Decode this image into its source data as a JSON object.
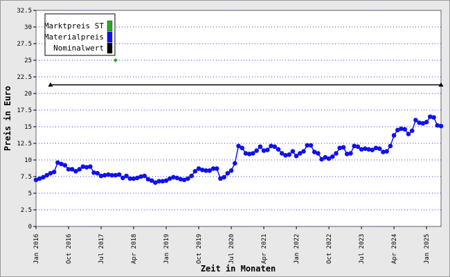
{
  "chart_data": {
    "type": "line",
    "ylabel": "Preis in Euro",
    "xlabel": "Zeit in Monaten",
    "ylim": [
      0,
      32.5
    ],
    "yticks": [
      0,
      2.5,
      5,
      7.5,
      10,
      12.5,
      15,
      17.5,
      20,
      22.5,
      25,
      27.5,
      30,
      32.5
    ],
    "grid": true,
    "legend": "top-left",
    "categories": [
      "Jan 2016",
      null,
      null,
      null,
      null,
      null,
      null,
      null,
      null,
      "Oct 2016",
      null,
      null,
      null,
      null,
      null,
      null,
      null,
      null,
      "Jul 2017",
      null,
      null,
      null,
      null,
      null,
      null,
      null,
      null,
      "Apr 2018",
      null,
      null,
      null,
      null,
      null,
      null,
      null,
      null,
      "Jan 2019",
      null,
      null,
      null,
      null,
      null,
      null,
      null,
      null,
      "Oct 2019",
      null,
      null,
      null,
      null,
      null,
      null,
      null,
      null,
      "Jul 2020",
      null,
      null,
      null,
      null,
      null,
      null,
      null,
      null,
      "Apr 2021",
      null,
      null,
      null,
      null,
      null,
      null,
      null,
      null,
      "Jan 2022",
      null,
      null,
      null,
      null,
      null,
      null,
      null,
      null,
      "Oct 2022",
      null,
      null,
      null,
      null,
      null,
      null,
      null,
      null,
      "Jul 2023",
      null,
      null,
      null,
      null,
      null,
      null,
      null,
      null,
      "Apr 2024",
      null,
      null,
      null,
      null,
      null,
      null,
      null,
      null,
      "Jan 2025",
      null,
      null,
      null,
      null
    ],
    "series": [
      {
        "name": "Marktpreis ST",
        "color": "#22aa22",
        "marker": "diamond",
        "markers": "all",
        "values": [
          null,
          null,
          null,
          null,
          null,
          null,
          null,
          null,
          null,
          null,
          null,
          null,
          null,
          null,
          null,
          null,
          null,
          null,
          null,
          null,
          null,
          null,
          25,
          null,
          null,
          null,
          null,
          null,
          null,
          null,
          null,
          null,
          null,
          null,
          null,
          null,
          null,
          null,
          null,
          null,
          null,
          null,
          null,
          null,
          null,
          null,
          null,
          null,
          null,
          null,
          null,
          null,
          null,
          null,
          null,
          null,
          null,
          null,
          null,
          null,
          null,
          null,
          null,
          null,
          null,
          null,
          null,
          null,
          null,
          null,
          null,
          null,
          null,
          null,
          null,
          null,
          null,
          null,
          null,
          null,
          null,
          null,
          null,
          null,
          null,
          null,
          null,
          null,
          null,
          null,
          null,
          null,
          null,
          null,
          null,
          null,
          null,
          null,
          null,
          null,
          null,
          null,
          null,
          null,
          null,
          null,
          null,
          null,
          null,
          null,
          null,
          null,
          null
        ]
      },
      {
        "name": "Materialpreis",
        "color": "#1010ee",
        "marker": "circle",
        "markers": "all",
        "values": [
          7.0,
          7.2,
          7.4,
          7.7,
          8.0,
          8.2,
          9.6,
          9.4,
          9.2,
          8.6,
          8.6,
          8.3,
          8.6,
          9.0,
          8.9,
          9.0,
          8.1,
          8.0,
          7.6,
          7.7,
          7.8,
          7.7,
          7.7,
          7.8,
          7.3,
          7.6,
          7.2,
          7.2,
          7.3,
          7.5,
          7.6,
          7.1,
          6.9,
          6.6,
          6.8,
          6.8,
          6.9,
          7.2,
          7.4,
          7.3,
          7.1,
          7.0,
          7.2,
          7.6,
          8.3,
          8.7,
          8.5,
          8.4,
          8.4,
          8.7,
          8.7,
          7.2,
          7.4,
          8.0,
          8.4,
          9.5,
          12.1,
          11.8,
          11.0,
          10.9,
          11.0,
          11.4,
          12.0,
          11.4,
          11.5,
          12.1,
          12.0,
          11.6,
          11.0,
          10.7,
          10.8,
          11.3,
          10.6,
          11.0,
          11.3,
          12.2,
          12.2,
          11.2,
          11.0,
          10.1,
          10.4,
          10.2,
          10.5,
          11.0,
          11.8,
          11.9,
          10.9,
          11.0,
          12.1,
          12.0,
          11.6,
          11.7,
          11.6,
          11.5,
          11.8,
          11.7,
          11.2,
          11.3,
          12.1,
          13.7,
          14.5,
          14.7,
          14.6,
          13.9,
          14.4,
          16.0,
          15.6,
          15.5,
          15.7,
          16.5,
          16.4,
          15.2,
          15.1
        ]
      },
      {
        "name": "Nominalwert",
        "color": "#000000",
        "marker": "triangle",
        "markers": "ends",
        "values": [
          null,
          null,
          null,
          null,
          21.3,
          21.3,
          21.3,
          21.3,
          21.3,
          21.3,
          21.3,
          21.3,
          21.3,
          21.3,
          21.3,
          21.3,
          21.3,
          21.3,
          21.3,
          21.3,
          21.3,
          21.3,
          21.3,
          21.3,
          21.3,
          21.3,
          21.3,
          21.3,
          21.3,
          21.3,
          21.3,
          21.3,
          21.3,
          21.3,
          21.3,
          21.3,
          21.3,
          21.3,
          21.3,
          21.3,
          21.3,
          21.3,
          21.3,
          21.3,
          21.3,
          21.3,
          21.3,
          21.3,
          21.3,
          21.3,
          21.3,
          21.3,
          21.3,
          21.3,
          21.3,
          21.3,
          21.3,
          21.3,
          21.3,
          21.3,
          21.3,
          21.3,
          21.3,
          21.3,
          21.3,
          21.3,
          21.3,
          21.3,
          21.3,
          21.3,
          21.3,
          21.3,
          21.3,
          21.3,
          21.3,
          21.3,
          21.3,
          21.3,
          21.3,
          21.3,
          21.3,
          21.3,
          21.3,
          21.3,
          21.3,
          21.3,
          21.3,
          21.3,
          21.3,
          21.3,
          21.3,
          21.3,
          21.3,
          21.3,
          21.3,
          21.3,
          21.3,
          21.3,
          21.3,
          21.3,
          21.3,
          21.3,
          21.3,
          21.3,
          21.3,
          21.3,
          21.3,
          21.3,
          21.3,
          21.3,
          21.3,
          21.3,
          21.3
        ]
      }
    ]
  }
}
